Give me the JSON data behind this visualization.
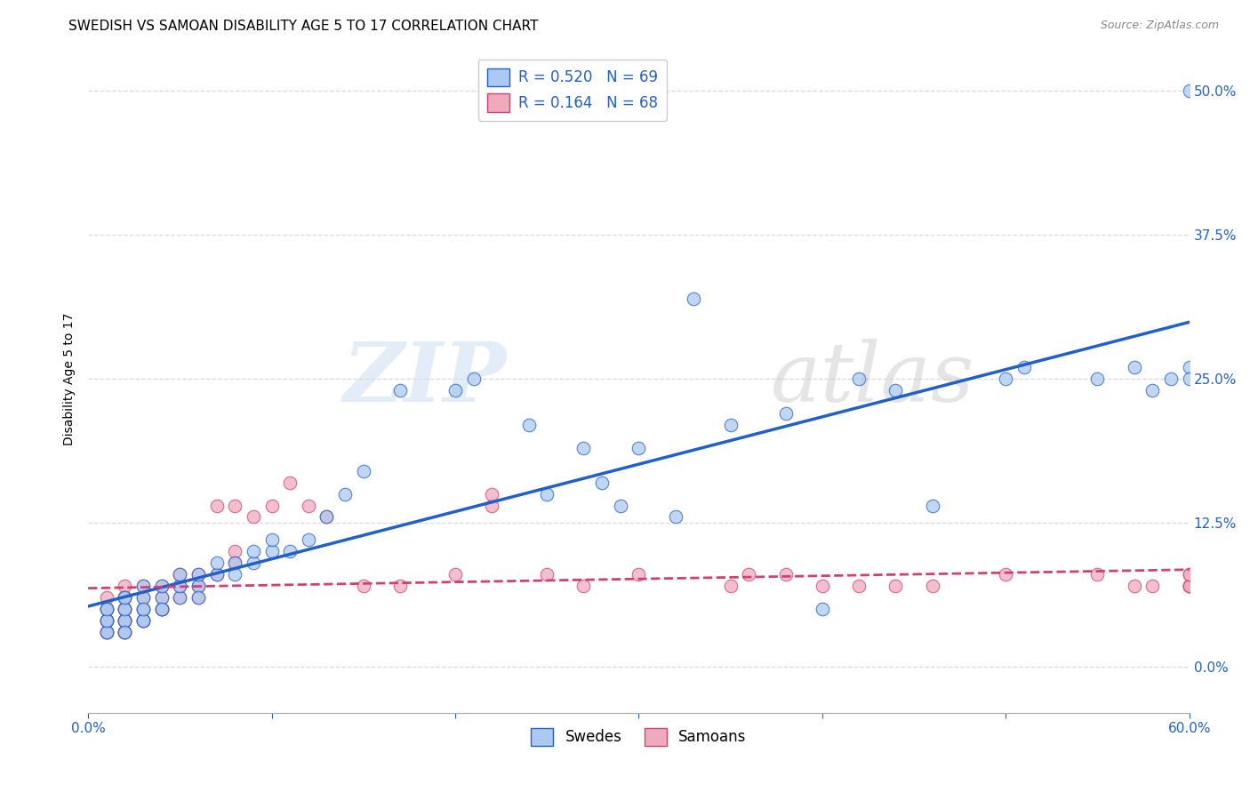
{
  "title": "SWEDISH VS SAMOAN DISABILITY AGE 5 TO 17 CORRELATION CHART",
  "source": "Source: ZipAtlas.com",
  "ylabel": "Disability Age 5 to 17",
  "xlim": [
    0.0,
    0.6
  ],
  "ylim": [
    -0.04,
    0.54
  ],
  "blue_R": 0.52,
  "blue_N": 69,
  "pink_R": 0.164,
  "pink_N": 68,
  "blue_color": "#adc9f0",
  "pink_color": "#f0aabe",
  "blue_line_color": "#2060c8",
  "pink_line_color": "#d04070",
  "watermark_zip": "ZIP",
  "watermark_atlas": "atlas",
  "background_color": "#ffffff",
  "grid_color": "#d0d0d0",
  "title_fontsize": 11,
  "axis_label_fontsize": 10,
  "tick_fontsize": 11,
  "blue_points_x": [
    0.01,
    0.01,
    0.01,
    0.01,
    0.01,
    0.01,
    0.02,
    0.02,
    0.02,
    0.02,
    0.02,
    0.02,
    0.02,
    0.02,
    0.03,
    0.03,
    0.03,
    0.03,
    0.03,
    0.03,
    0.04,
    0.04,
    0.04,
    0.04,
    0.05,
    0.05,
    0.05,
    0.06,
    0.06,
    0.06,
    0.07,
    0.07,
    0.08,
    0.08,
    0.09,
    0.09,
    0.1,
    0.1,
    0.11,
    0.12,
    0.13,
    0.14,
    0.15,
    0.17,
    0.2,
    0.21,
    0.24,
    0.25,
    0.27,
    0.28,
    0.29,
    0.3,
    0.32,
    0.33,
    0.35,
    0.38,
    0.4,
    0.42,
    0.44,
    0.46,
    0.5,
    0.51,
    0.55,
    0.57,
    0.58,
    0.59,
    0.6,
    0.6,
    0.6
  ],
  "blue_points_y": [
    0.03,
    0.04,
    0.05,
    0.03,
    0.04,
    0.05,
    0.03,
    0.04,
    0.05,
    0.06,
    0.04,
    0.05,
    0.03,
    0.06,
    0.04,
    0.05,
    0.06,
    0.04,
    0.05,
    0.07,
    0.05,
    0.06,
    0.07,
    0.05,
    0.06,
    0.07,
    0.08,
    0.07,
    0.08,
    0.06,
    0.08,
    0.09,
    0.09,
    0.08,
    0.09,
    0.1,
    0.1,
    0.11,
    0.1,
    0.11,
    0.13,
    0.15,
    0.17,
    0.24,
    0.24,
    0.25,
    0.21,
    0.15,
    0.19,
    0.16,
    0.14,
    0.19,
    0.13,
    0.32,
    0.21,
    0.22,
    0.05,
    0.25,
    0.24,
    0.14,
    0.25,
    0.26,
    0.25,
    0.26,
    0.24,
    0.25,
    0.5,
    0.26,
    0.25
  ],
  "pink_points_x": [
    0.01,
    0.01,
    0.01,
    0.01,
    0.01,
    0.01,
    0.01,
    0.01,
    0.02,
    0.02,
    0.02,
    0.02,
    0.02,
    0.02,
    0.02,
    0.02,
    0.02,
    0.02,
    0.03,
    0.03,
    0.03,
    0.03,
    0.03,
    0.04,
    0.04,
    0.04,
    0.04,
    0.05,
    0.05,
    0.05,
    0.06,
    0.06,
    0.06,
    0.07,
    0.07,
    0.08,
    0.08,
    0.08,
    0.09,
    0.1,
    0.11,
    0.12,
    0.13,
    0.15,
    0.17,
    0.2,
    0.22,
    0.22,
    0.25,
    0.27,
    0.3,
    0.35,
    0.36,
    0.38,
    0.4,
    0.42,
    0.44,
    0.46,
    0.5,
    0.55,
    0.57,
    0.58,
    0.6,
    0.6,
    0.6,
    0.6,
    0.6,
    0.6
  ],
  "pink_points_y": [
    0.03,
    0.04,
    0.05,
    0.03,
    0.04,
    0.05,
    0.06,
    0.04,
    0.03,
    0.04,
    0.05,
    0.06,
    0.04,
    0.05,
    0.06,
    0.03,
    0.07,
    0.04,
    0.04,
    0.05,
    0.06,
    0.04,
    0.07,
    0.05,
    0.06,
    0.07,
    0.05,
    0.06,
    0.07,
    0.08,
    0.07,
    0.08,
    0.06,
    0.08,
    0.14,
    0.09,
    0.1,
    0.14,
    0.13,
    0.14,
    0.16,
    0.14,
    0.13,
    0.07,
    0.07,
    0.08,
    0.14,
    0.15,
    0.08,
    0.07,
    0.08,
    0.07,
    0.08,
    0.08,
    0.07,
    0.07,
    0.07,
    0.07,
    0.08,
    0.08,
    0.07,
    0.07,
    0.07,
    0.07,
    0.07,
    0.07,
    0.08,
    0.08
  ]
}
